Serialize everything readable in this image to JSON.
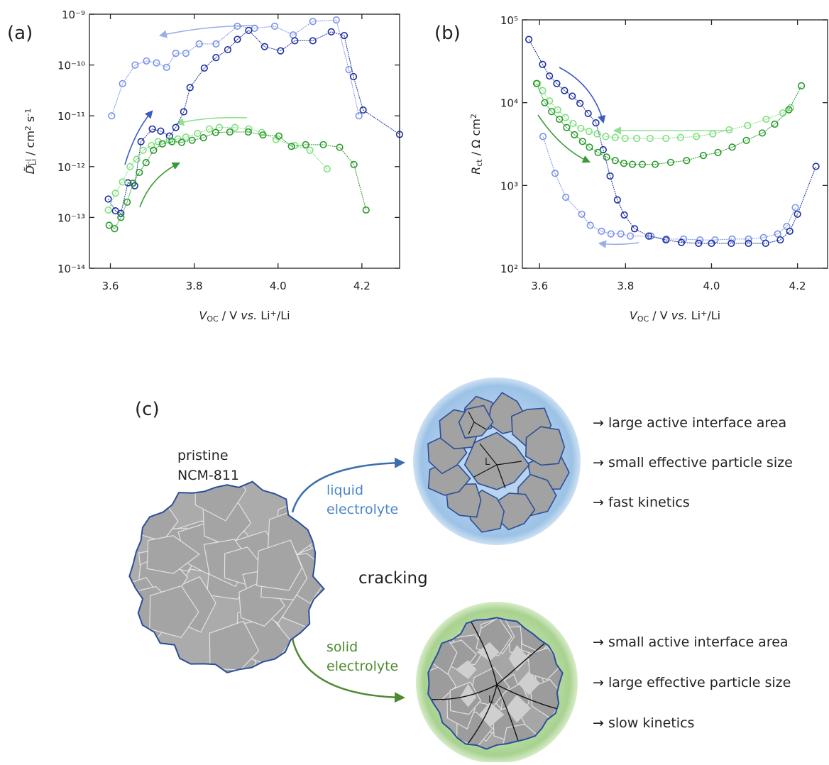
{
  "chart_data": [
    {
      "type": "line",
      "label": "(a)",
      "log_y": true,
      "xlabel": [
        "V",
        "OC",
        " / V ",
        "vs.",
        " Li",
        "+",
        "/Li"
      ],
      "ylabel": [
        "D̃",
        "Li",
        "s-i",
        " / cm",
        "2",
        " s",
        "-1"
      ],
      "xlim": [
        3.55,
        4.29
      ],
      "ylim": [
        1e-14,
        1e-09
      ],
      "xticks": [
        3.6,
        3.8,
        {
          "value": 4,
          "label": "4.0"
        },
        4.2
      ],
      "yticks": [
        {
          "value": 1e-14,
          "label": "10⁻¹⁴"
        },
        {
          "value": 1e-13,
          "label": "10⁻¹³"
        },
        {
          "value": 1e-12,
          "label": "10⁻¹²"
        },
        {
          "value": 1e-11,
          "label": "10⁻¹¹"
        },
        {
          "value": 1e-10,
          "label": "10⁻¹⁰"
        },
        {
          "value": 1e-09,
          "label": "10⁻⁹"
        }
      ],
      "series": [
        {
          "color": "#7b93e8",
          "x": [
            3.603,
            3.629,
            3.659,
            3.686,
            3.71,
            3.734,
            3.756,
            3.78,
            3.812,
            3.852,
            3.903,
            3.944,
            3.992,
            4.036,
            4.083,
            4.139,
            4.169,
            4.193
          ],
          "values": [
            1e-11,
            4.3e-11,
            1e-10,
            1.2e-10,
            1.1e-10,
            9e-11,
            1.7e-10,
            1.7e-10,
            2.6e-10,
            2.6e-10,
            5.8e-10,
            5.3e-10,
            5.8e-10,
            3.9e-10,
            7.2e-10,
            7.7e-10,
            8.1e-11,
            1e-11
          ]
        },
        {
          "color": "#1c2fa0",
          "x": [
            3.595,
            3.612,
            3.625,
            3.642,
            3.658,
            3.673,
            3.7,
            3.72,
            3.741,
            3.756,
            3.775,
            3.79,
            3.824,
            3.852,
            3.88,
            3.903,
            3.93,
            3.968,
            4.006,
            4.04,
            4.083,
            4.127,
            4.158,
            4.18,
            4.203,
            4.29
          ],
          "values": [
            2.3e-13,
            1.35e-13,
            1.2e-13,
            4.8e-13,
            4.2e-13,
            3.1e-12,
            5.5e-12,
            5e-12,
            4e-12,
            5.9e-12,
            1.2e-11,
            3.6e-11,
            8.7e-11,
            1.4e-10,
            2e-10,
            3.2e-10,
            4.8e-10,
            2.3e-10,
            1.9e-10,
            3e-10,
            3e-10,
            4.5e-10,
            3.8e-10,
            5.9e-11,
            1.3e-11,
            4.3e-12
          ]
        },
        {
          "color": "#80df80",
          "x": [
            3.595,
            3.612,
            3.629,
            3.647,
            3.663,
            3.678,
            3.698,
            3.714,
            3.741,
            3.761,
            3.78,
            3.808,
            3.836,
            3.86,
            3.897,
            3.93,
            3.961,
            3.995,
            4.04,
            4.076,
            4.117
          ],
          "values": [
            1.4e-13,
            3e-13,
            5e-13,
            1e-12,
            1.4e-12,
            2.1e-12,
            2.6e-12,
            3.1e-12,
            3.3e-12,
            3.5e-12,
            3.8e-12,
            4.5e-12,
            5.5e-12,
            5.9e-12,
            5.9e-12,
            5.5e-12,
            4.7e-12,
            3.4e-12,
            2.6e-12,
            2.1e-12,
            9e-13
          ]
        },
        {
          "color": "#2a9a2a",
          "x": [
            3.597,
            3.61,
            3.625,
            3.64,
            3.654,
            3.669,
            3.685,
            3.703,
            3.724,
            3.747,
            3.77,
            3.795,
            3.822,
            3.851,
            3.885,
            3.929,
            3.964,
            4.002,
            4.032,
            4.066,
            4.108,
            4.147,
            4.181,
            4.21
          ],
          "values": [
            7e-14,
            6e-14,
            1e-13,
            2e-13,
            4.7e-13,
            7.7e-13,
            1.2e-12,
            2.1e-12,
            2.8e-12,
            3.1e-12,
            3e-12,
            3.3e-12,
            3.7e-12,
            4.7e-12,
            4.8e-12,
            4.8e-12,
            4.2e-12,
            4e-12,
            2.5e-12,
            2.7e-12,
            2.7e-12,
            2.4e-12,
            1.1e-12,
            1.4e-13
          ]
        }
      ]
    },
    {
      "type": "line",
      "label": "(b)",
      "log_y": true,
      "xlabel": [
        "V",
        "OC",
        " / V ",
        "vs.",
        " Li",
        "+",
        "/Li"
      ],
      "ylabel": [
        "R",
        "ct",
        " / Ω cm",
        "2"
      ],
      "xlim": [
        3.56,
        4.27
      ],
      "ylim": [
        100,
        100000
      ],
      "xticks": [
        3.6,
        3.8,
        {
          "value": 4,
          "label": "4.0"
        },
        4.2
      ],
      "yticks": [
        {
          "value": 100,
          "label": "10²"
        },
        {
          "value": 1000,
          "label": "10³"
        },
        {
          "value": 10000,
          "label": "10⁴"
        },
        {
          "value": 100000,
          "label": "10⁵"
        }
      ],
      "series": [
        {
          "color": "#7b93e8",
          "x": [
            3.608,
            3.636,
            3.661,
            3.698,
            3.718,
            3.744,
            3.766,
            3.789,
            3.811,
            3.859,
            3.895,
            3.935,
            3.973,
            4.008,
            4.048,
            4.086,
            4.121,
            4.154,
            4.175,
            4.195
          ],
          "values": [
            3900,
            1400,
            720,
            450,
            330,
            280,
            260,
            260,
            245,
            245,
            225,
            225,
            220,
            220,
            225,
            225,
            235,
            260,
            320,
            540
          ]
        },
        {
          "color": "#1c2fa0",
          "x": [
            3.575,
            3.607,
            3.623,
            3.64,
            3.658,
            3.676,
            3.694,
            3.713,
            3.731,
            3.748,
            3.764,
            3.781,
            3.797,
            3.821,
            3.854,
            3.894,
            3.93,
            3.97,
            4.0,
            4.046,
            4.086,
            4.126,
            4.16,
            4.182,
            4.2,
            4.243
          ],
          "values": [
            58000,
            29000,
            21000,
            17000,
            14000,
            12000,
            9800,
            7400,
            5700,
            2700,
            1300,
            670,
            440,
            300,
            245,
            220,
            205,
            200,
            200,
            200,
            200,
            200,
            220,
            280,
            450,
            1700
          ]
        },
        {
          "color": "#80df80",
          "x": [
            3.595,
            3.607,
            3.623,
            3.642,
            3.66,
            3.678,
            3.696,
            3.715,
            3.734,
            3.754,
            3.776,
            3.799,
            3.826,
            3.857,
            3.894,
            3.928,
            3.965,
            4.003,
            4.041,
            4.084,
            4.127,
            4.166,
            4.184
          ],
          "values": [
            17000,
            14000,
            10500,
            8200,
            6600,
            5600,
            4900,
            4500,
            4200,
            3900,
            3800,
            3700,
            3700,
            3700,
            3700,
            3800,
            3900,
            4200,
            4700,
            5300,
            6300,
            7500,
            8700
          ]
        },
        {
          "color": "#2a9a2a",
          "x": [
            3.593,
            3.612,
            3.628,
            3.646,
            3.663,
            3.681,
            3.7,
            3.716,
            3.736,
            3.756,
            3.776,
            3.796,
            3.816,
            3.839,
            3.869,
            3.905,
            3.942,
            3.981,
            4.015,
            4.048,
            4.081,
            4.118,
            4.147,
            4.18,
            4.209
          ],
          "values": [
            17000,
            10000,
            7800,
            6300,
            5000,
            4100,
            3400,
            2900,
            2500,
            2200,
            2000,
            1850,
            1800,
            1800,
            1800,
            1900,
            2000,
            2300,
            2500,
            2900,
            3500,
            4300,
            5500,
            8200,
            16000
          ]
        }
      ]
    }
  ],
  "diagram": {
    "label": "(c)",
    "pristine": [
      "pristine",
      "NCM-811"
    ],
    "center": "cracking",
    "liquid": {
      "label": [
        "liquid",
        "electrolyte"
      ],
      "marker": "L",
      "items": [
        "→ large active interface area",
        "→ small effective particle size",
        "→ fast kinetics"
      ]
    },
    "solid": {
      "label": [
        "solid",
        "electrolyte"
      ],
      "marker": "L",
      "items": [
        "→ small active interface area",
        "→ large effective particle size",
        "→ slow kinetics"
      ]
    }
  }
}
